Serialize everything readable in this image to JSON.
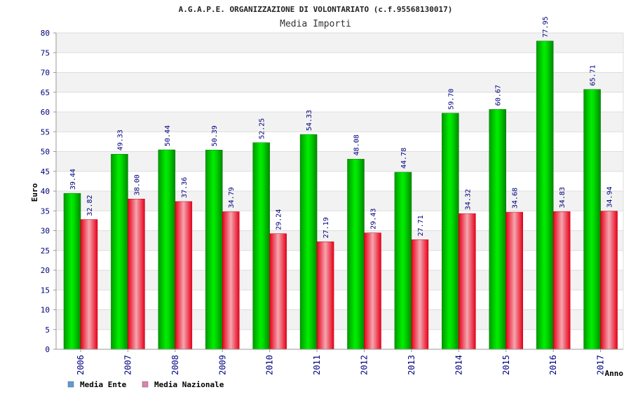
{
  "chart_data": {
    "type": "bar",
    "title": "A.G.A.P.E. ORGANIZZAZIONE DI VOLONTARIATO (c.f.95568130017)",
    "subtitle": "Media Importi",
    "xlabel": "Anno",
    "ylabel": "Euro",
    "ylim": [
      0,
      80
    ],
    "ytick_step": 5,
    "grid": true,
    "legend_position": "bottom-left",
    "categories": [
      "2006",
      "2007",
      "2008",
      "2009",
      "2010",
      "2011",
      "2012",
      "2013",
      "2014",
      "2015",
      "2016",
      "2017"
    ],
    "series": [
      {
        "name": "Media Ente",
        "color": "#00cc00",
        "legend_color": "#5b9bd5",
        "values": [
          39.44,
          49.33,
          50.44,
          50.39,
          52.25,
          54.33,
          48.08,
          44.78,
          59.7,
          60.67,
          77.95,
          65.71
        ],
        "labels": [
          "39.44",
          "49.33",
          "50.44",
          "50.39",
          "52.25",
          "54.33",
          "48.08",
          "44.78",
          "59.70",
          "60.67",
          "77.95",
          "65.71"
        ]
      },
      {
        "name": "Media Nazionale",
        "color": "#ee1122",
        "legend_color": "#e07fb0",
        "values": [
          32.82,
          38.0,
          37.36,
          34.79,
          29.24,
          27.19,
          29.43,
          27.71,
          34.32,
          34.68,
          34.83,
          34.94
        ],
        "labels": [
          "32.82",
          "38.00",
          "37.36",
          "34.79",
          "29.24",
          "27.19",
          "29.43",
          "27.71",
          "34.32",
          "34.68",
          "34.83",
          "34.94"
        ]
      }
    ]
  }
}
